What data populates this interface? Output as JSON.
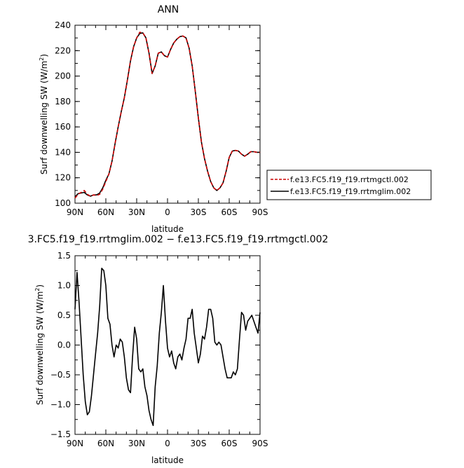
{
  "chart_data": [
    {
      "type": "line",
      "title": "ANN",
      "xlabel": "latitude",
      "ylabel": "Surf downwelling SW (W/m²)",
      "ylabel_text": "Surf downwelling SW (W/m",
      "ylabel_sup": "2",
      "ylabel_close": ")",
      "xlim": [
        90,
        -90
      ],
      "ylim": [
        100,
        240
      ],
      "xticks": [
        {
          "value": 90,
          "label": "90N"
        },
        {
          "value": 60,
          "label": "60N"
        },
        {
          "value": 30,
          "label": "30N"
        },
        {
          "value": 0,
          "label": "0"
        },
        {
          "value": -30,
          "label": "30S"
        },
        {
          "value": -60,
          "label": "60S"
        },
        {
          "value": -90,
          "label": "90S"
        }
      ],
      "yticks": [
        100,
        120,
        140,
        160,
        180,
        200,
        220,
        240
      ],
      "legend_position": "right",
      "series": [
        {
          "name": "f.e13.FC5.f19_f19.rrtmgctl.002",
          "color": "#cc0000",
          "dash": "dashed",
          "x": [
            90,
            87,
            84,
            81,
            78,
            75,
            72,
            69,
            66,
            63,
            60,
            57,
            54,
            51,
            48,
            45,
            42,
            39,
            36,
            33,
            30,
            27,
            24,
            21,
            18,
            15,
            12,
            9,
            6,
            3,
            0,
            -3,
            -6,
            -9,
            -12,
            -15,
            -18,
            -21,
            -24,
            -27,
            -30,
            -33,
            -36,
            -39,
            -42,
            -45,
            -48,
            -51,
            -54,
            -57,
            -60,
            -63,
            -66,
            -69,
            -72,
            -75,
            -78,
            -81,
            -84,
            -87,
            -90
          ],
          "y": [
            104,
            107,
            108.5,
            110,
            107,
            105.5,
            106.5,
            106,
            107,
            111,
            117,
            123,
            133,
            147,
            160,
            172,
            183,
            197,
            212,
            223,
            230,
            234.5,
            234,
            230,
            218,
            202,
            208,
            218,
            219,
            216,
            215,
            221,
            226,
            229,
            231,
            231.5,
            230,
            222,
            208,
            188,
            167,
            148,
            135,
            125,
            117,
            112,
            110,
            112,
            116,
            125,
            136,
            141,
            141.5,
            141,
            138.5,
            137,
            138.5,
            140.5,
            140.5,
            140,
            140
          ]
        },
        {
          "name": "f.e13.FC5.f19_f19.rrtmglim.002",
          "color": "#000000",
          "dash": "solid",
          "x": [
            90,
            87,
            84,
            81,
            78,
            75,
            72,
            69,
            66,
            63,
            60,
            57,
            54,
            51,
            48,
            45,
            42,
            39,
            36,
            33,
            30,
            27,
            24,
            21,
            18,
            15,
            12,
            9,
            6,
            3,
            0,
            -3,
            -6,
            -9,
            -12,
            -15,
            -18,
            -21,
            -24,
            -27,
            -30,
            -33,
            -36,
            -39,
            -42,
            -45,
            -48,
            -51,
            -54,
            -57,
            -60,
            -63,
            -66,
            -69,
            -72,
            -75,
            -78,
            -81,
            -84,
            -87,
            -90
          ],
          "y": [
            105,
            107.5,
            108,
            108.5,
            106.5,
            105.5,
            106.5,
            106.5,
            108,
            112,
            118,
            123,
            133,
            147,
            160,
            172,
            183,
            197,
            212,
            223,
            230,
            233.5,
            234,
            230,
            218,
            202,
            208,
            218,
            219,
            216,
            215,
            221,
            226,
            229,
            231,
            231.5,
            230,
            222,
            208,
            188,
            167,
            148,
            135,
            125,
            117,
            112,
            110,
            112,
            116,
            125,
            136,
            141,
            141.5,
            141,
            138.5,
            137,
            138.5,
            140.5,
            140.5,
            140,
            140
          ]
        }
      ]
    },
    {
      "type": "line",
      "title": "3.FC5.f19_f19.rrtmglim.002 − f.e13.FC5.f19_f19.rrtmgctl.002",
      "xlabel": "latitude",
      "ylabel": "Surf downwelling SW (W/m²)",
      "ylabel_text": "Surf downwelling SW (W/m",
      "ylabel_sup": "2",
      "ylabel_close": ")",
      "xlim": [
        90,
        -90
      ],
      "ylim": [
        -1.5,
        1.5
      ],
      "xticks": [
        {
          "value": 90,
          "label": "90N"
        },
        {
          "value": 60,
          "label": "60N"
        },
        {
          "value": 30,
          "label": "30N"
        },
        {
          "value": 0,
          "label": "0"
        },
        {
          "value": -30,
          "label": "30S"
        },
        {
          "value": -60,
          "label": "60S"
        },
        {
          "value": -90,
          "label": "90S"
        }
      ],
      "yticks": [
        {
          "value": 1.5,
          "label": "1.5"
        },
        {
          "value": 1.0,
          "label": "1.0"
        },
        {
          "value": 0.5,
          "label": "0.5"
        },
        {
          "value": 0.0,
          "label": "0.0"
        },
        {
          "value": -0.5,
          "label": "−0.5"
        },
        {
          "value": -1.0,
          "label": "−1.0"
        },
        {
          "value": -1.5,
          "label": "−1.5"
        }
      ],
      "series": [
        {
          "color": "#000000",
          "x": [
            90,
            88,
            86,
            84,
            82,
            80,
            78,
            76,
            74,
            72,
            70,
            68,
            66,
            64,
            62,
            60,
            58,
            56,
            54,
            52,
            50,
            48,
            46,
            44,
            42,
            40,
            38,
            36,
            34,
            32,
            30,
            28,
            26,
            24,
            22,
            20,
            18,
            16,
            14,
            12,
            10,
            8,
            6,
            4,
            2,
            0,
            -2,
            -4,
            -6,
            -8,
            -10,
            -12,
            -14,
            -16,
            -18,
            -20,
            -22,
            -24,
            -26,
            -28,
            -30,
            -32,
            -34,
            -36,
            -38,
            -40,
            -42,
            -44,
            -46,
            -48,
            -50,
            -52,
            -54,
            -56,
            -58,
            -60,
            -62,
            -64,
            -66,
            -68,
            -70,
            -72,
            -74,
            -76,
            -78,
            -80,
            -82,
            -84,
            -86,
            -88,
            -90
          ],
          "y": [
            0.6,
            1.22,
            0.7,
            0.1,
            -0.5,
            -0.95,
            -1.17,
            -1.12,
            -0.85,
            -0.5,
            -0.15,
            0.2,
            0.65,
            1.29,
            1.25,
            1.0,
            0.45,
            0.35,
            0.0,
            -0.2,
            0.0,
            -0.05,
            0.1,
            0.05,
            -0.2,
            -0.55,
            -0.75,
            -0.8,
            -0.2,
            0.3,
            0.1,
            -0.4,
            -0.45,
            -0.4,
            -0.7,
            -0.85,
            -1.1,
            -1.25,
            -1.35,
            -0.7,
            -0.35,
            0.2,
            0.55,
            1.0,
            0.4,
            -0.05,
            -0.2,
            -0.1,
            -0.3,
            -0.4,
            -0.2,
            -0.15,
            -0.25,
            -0.05,
            0.1,
            0.45,
            0.45,
            0.6,
            0.2,
            -0.05,
            -0.3,
            -0.15,
            0.15,
            0.1,
            0.3,
            0.6,
            0.6,
            0.45,
            0.05,
            0.0,
            0.05,
            0.0,
            -0.2,
            -0.4,
            -0.55,
            -0.55,
            -0.55,
            -0.45,
            -0.5,
            -0.4,
            0.1,
            0.55,
            0.5,
            0.25,
            0.4,
            0.45,
            0.5,
            0.4,
            0.3,
            0.2,
            0.55
          ]
        }
      ]
    }
  ]
}
